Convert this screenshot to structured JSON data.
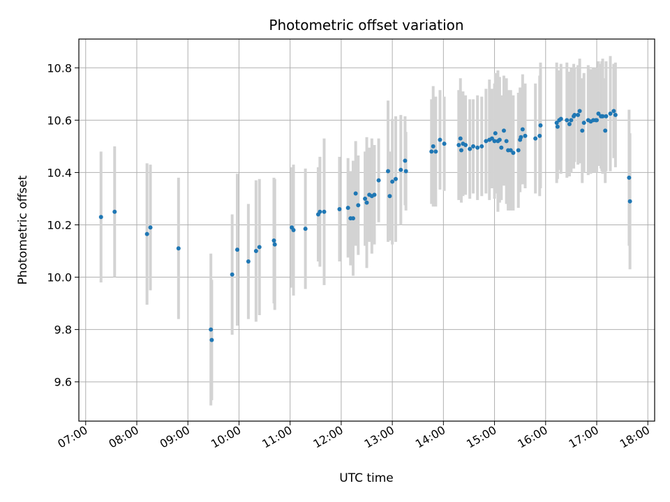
{
  "chart_data": {
    "type": "scatter",
    "title": "Photometric offset variation",
    "xlabel": "UTC time",
    "ylabel": "Photometric offset",
    "x_is_time": true,
    "xlim": [
      "06:52",
      "18:08"
    ],
    "ylim": [
      9.45,
      10.91
    ],
    "x_ticks": [
      "07:00",
      "08:00",
      "09:00",
      "10:00",
      "11:00",
      "12:00",
      "13:00",
      "14:00",
      "15:00",
      "16:00",
      "17:00",
      "18:00"
    ],
    "y_ticks": [
      9.6,
      9.8,
      10.0,
      10.2,
      10.4,
      10.6,
      10.8
    ],
    "y_tick_labels": [
      "9.6",
      "9.8",
      "10.0",
      "10.2",
      "10.4",
      "10.6",
      "10.8"
    ],
    "grid": true,
    "point_color": "#1f77b4",
    "errorbar_color": "#d3d3d3",
    "series": [
      {
        "x": [
          "07:18",
          "07:34",
          "08:12",
          "08:16",
          "08:49",
          "09:27",
          "09:28",
          "09:52",
          "09:58",
          "10:11",
          "10:20",
          "10:24",
          "10:41",
          "10:42",
          "11:02",
          "11:04",
          "11:18",
          "11:33",
          "11:35",
          "11:40",
          "11:58",
          "12:08",
          "12:11",
          "12:14",
          "12:17",
          "12:20",
          "12:28",
          "12:30",
          "12:33",
          "12:36",
          "12:39",
          "12:44",
          "12:55",
          "12:57",
          "13:00",
          "13:04",
          "13:10",
          "13:15",
          "13:16",
          "13:46",
          "13:48",
          "13:51",
          "13:56",
          "14:01",
          "14:18",
          "14:20",
          "14:21",
          "14:23",
          "14:26",
          "14:31",
          "14:35",
          "14:40",
          "14:45",
          "14:50",
          "14:54",
          "14:57",
          "15:00",
          "15:01",
          "15:04",
          "15:06",
          "15:08",
          "15:11",
          "15:14",
          "15:16",
          "15:19",
          "15:22",
          "15:28",
          "15:30",
          "15:31",
          "15:33",
          "15:36",
          "15:48",
          "15:53",
          "15:54",
          "16:13",
          "16:14",
          "16:16",
          "16:18",
          "16:25",
          "16:28",
          "16:30",
          "16:33",
          "16:34",
          "16:38",
          "16:40",
          "16:43",
          "16:45",
          "16:50",
          "16:53",
          "16:56",
          "16:59",
          "17:00",
          "17:02",
          "17:05",
          "17:06",
          "17:07",
          "17:10",
          "17:11",
          "17:16",
          "17:20",
          "17:22",
          "17:38",
          "17:39"
        ],
        "y": [
          10.23,
          10.25,
          10.165,
          10.19,
          10.11,
          9.8,
          9.76,
          10.01,
          10.105,
          10.06,
          10.1,
          10.115,
          10.14,
          10.125,
          10.19,
          10.18,
          10.185,
          10.24,
          10.25,
          10.25,
          10.26,
          10.265,
          10.225,
          10.225,
          10.32,
          10.275,
          10.3,
          10.285,
          10.315,
          10.31,
          10.315,
          10.37,
          10.405,
          10.31,
          10.365,
          10.375,
          10.41,
          10.445,
          10.405,
          10.48,
          10.5,
          10.48,
          10.525,
          10.51,
          10.505,
          10.53,
          10.485,
          10.51,
          10.505,
          10.49,
          10.5,
          10.495,
          10.5,
          10.52,
          10.525,
          10.53,
          10.52,
          10.55,
          10.52,
          10.525,
          10.495,
          10.56,
          10.52,
          10.485,
          10.485,
          10.475,
          10.485,
          10.525,
          10.535,
          10.565,
          10.54,
          10.53,
          10.54,
          10.58,
          10.59,
          10.575,
          10.6,
          10.605,
          10.6,
          10.585,
          10.6,
          10.615,
          10.62,
          10.62,
          10.635,
          10.56,
          10.59,
          10.6,
          10.595,
          10.6,
          10.6,
          10.6,
          10.625,
          10.615,
          10.615,
          10.615,
          10.56,
          10.615,
          10.625,
          10.635,
          10.62,
          10.38,
          10.29
        ],
        "err": [
          0.25,
          0.25,
          0.27,
          0.24,
          0.27,
          0.29,
          0.23,
          0.23,
          0.29,
          0.22,
          0.27,
          0.26,
          0.24,
          0.25,
          0.23,
          0.25,
          0.23,
          0.18,
          0.21,
          0.28,
          0.2,
          0.19,
          0.18,
          0.22,
          0.2,
          0.19,
          0.18,
          0.25,
          0.18,
          0.22,
          0.19,
          0.16,
          0.27,
          0.17,
          0.24,
          0.24,
          0.21,
          0.17,
          0.15,
          0.2,
          0.23,
          0.21,
          0.19,
          0.18,
          0.21,
          0.23,
          0.2,
          0.2,
          0.19,
          0.19,
          0.18,
          0.2,
          0.19,
          0.2,
          0.23,
          0.19,
          0.22,
          0.23,
          0.27,
          0.24,
          0.2,
          0.21,
          0.24,
          0.23,
          0.23,
          0.22,
          0.22,
          0.2,
          0.18,
          0.21,
          0.2,
          0.21,
          0.23,
          0.24,
          0.23,
          0.2,
          0.19,
          0.21,
          0.22,
          0.2,
          0.2,
          0.2,
          0.18,
          0.19,
          0.2,
          0.2,
          0.19,
          0.21,
          0.2,
          0.2,
          0.2,
          0.2,
          0.2,
          0.2,
          0.21,
          0.22,
          0.2,
          0.21,
          0.22,
          0.18,
          0.2,
          0.26,
          0.26
        ]
      }
    ]
  }
}
